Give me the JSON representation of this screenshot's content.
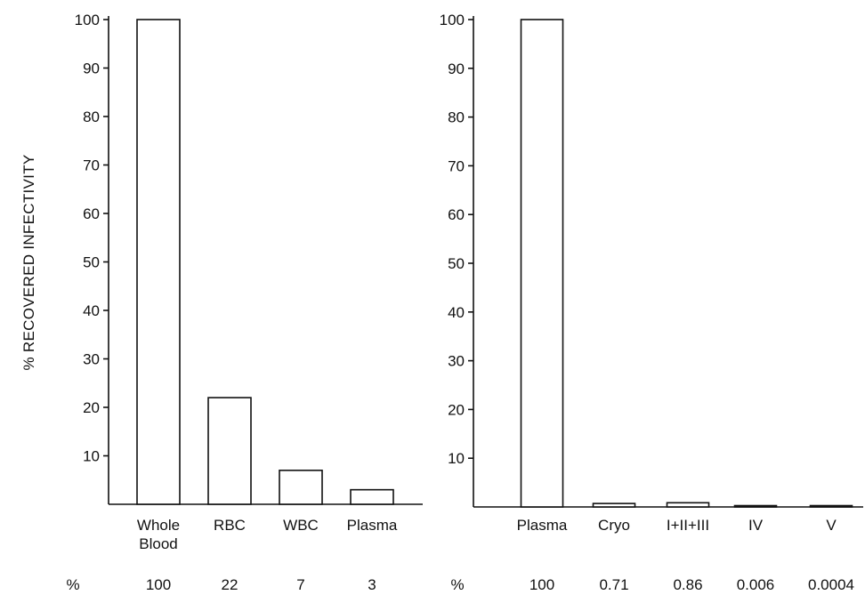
{
  "chart_data": [
    {
      "type": "bar",
      "ylabel": "% RECOVERED INFECTIVITY",
      "ylim": [
        0,
        100
      ],
      "yticks": [
        10,
        20,
        30,
        40,
        50,
        60,
        70,
        80,
        90,
        100
      ],
      "categories": [
        "Whole\nBlood",
        "RBC",
        "WBC",
        "Plasma"
      ],
      "values": [
        100,
        22,
        7,
        3
      ],
      "percent_row_label": "%",
      "percent_labels": [
        "100",
        "22",
        "7",
        "3"
      ]
    },
    {
      "type": "bar",
      "ylim": [
        0,
        100
      ],
      "yticks": [
        10,
        20,
        30,
        40,
        50,
        60,
        70,
        80,
        90,
        100
      ],
      "categories": [
        "Plasma",
        "Cryo",
        "I+II+III",
        "IV",
        "V"
      ],
      "values": [
        100,
        0.71,
        0.86,
        0.006,
        0.0004
      ],
      "percent_row_label": "%",
      "percent_labels": [
        "100",
        "0.71",
        "0.86",
        "0.006",
        "0.0004"
      ]
    }
  ]
}
